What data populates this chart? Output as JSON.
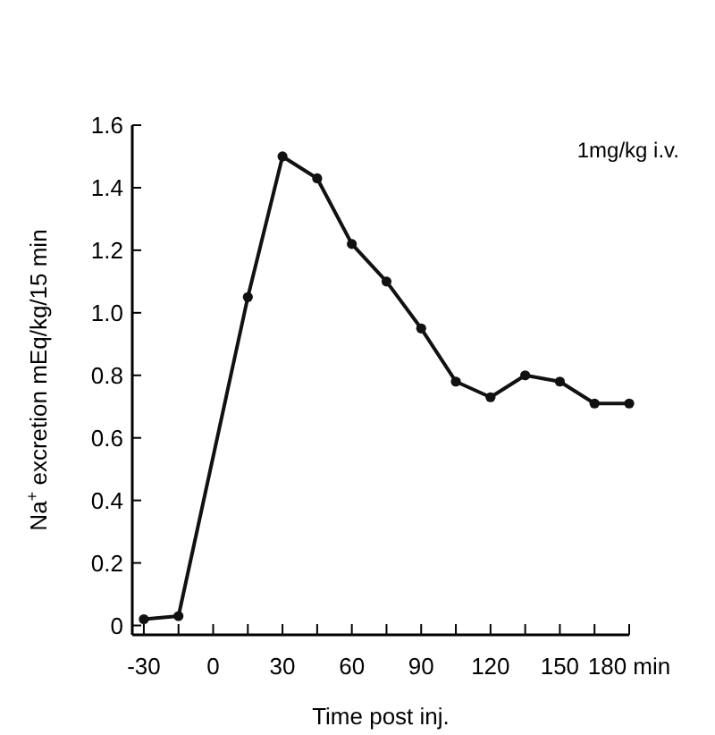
{
  "chart_data": {
    "type": "line",
    "xlabel": "Time post inj.",
    "ylabel": "Na$^{+}$ excretion mEq/kg/15 min",
    "annotations": [
      "1mg/kg i.v."
    ],
    "x": [
      -30,
      -15,
      15,
      30,
      45,
      60,
      75,
      90,
      105,
      120,
      135,
      150,
      165,
      180
    ],
    "series": [
      {
        "color": "#111111",
        "values": [
          0.02,
          0.03,
          1.05,
          1.5,
          1.43,
          1.22,
          1.1,
          0.95,
          0.78,
          0.73,
          0.8,
          0.78,
          0.71,
          0.71
        ]
      }
    ],
    "xlim": [
      -35,
      180
    ],
    "xticks": [
      -30,
      {
        "value": -15,
        "label": null
      },
      0,
      {
        "value": 15,
        "label": null
      },
      30,
      {
        "value": 45,
        "label": null
      },
      60,
      {
        "value": 75,
        "label": null
      },
      90,
      {
        "value": 105,
        "label": null
      },
      120,
      {
        "value": 135,
        "label": null
      },
      150,
      {
        "value": 165,
        "label": null
      },
      {
        "value": 180,
        "label": "180 min"
      }
    ],
    "ylim": [
      -0.03,
      1.6
    ],
    "yticks": [
      0,
      {
        "value": 0.2,
        "label": "0.2"
      },
      {
        "value": 0.4,
        "label": "0.4"
      },
      {
        "value": 0.6,
        "label": "0.6"
      },
      {
        "value": 0.8,
        "label": "0.8"
      },
      {
        "value": 1,
        "label": "1.0"
      },
      {
        "value": 1.2,
        "label": "1.2"
      },
      {
        "value": 1.4,
        "label": "1.4"
      },
      {
        "value": 1.6,
        "label": "1.6"
      }
    ],
    "grid": false,
    "marker": "circle",
    "line_style": "solid"
  }
}
